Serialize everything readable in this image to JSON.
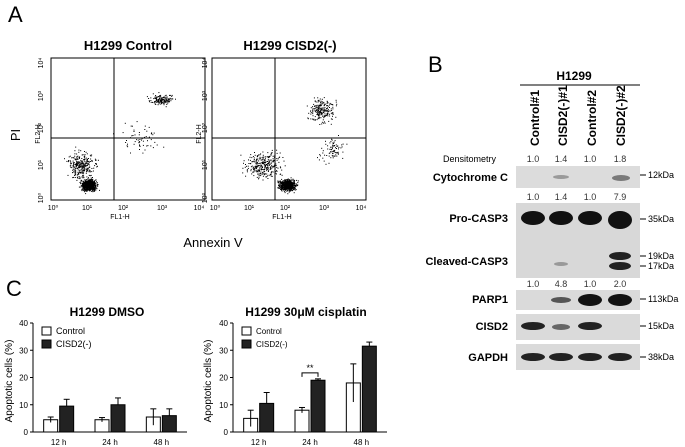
{
  "panel_a": {
    "letter": "A",
    "plots": [
      {
        "title": "H1299 Control",
        "y_axis_label": "FL2-H",
        "x_axis_label": "FL1-H",
        "ticks": [
          "10⁰",
          "10¹",
          "10²",
          "10³",
          "10⁴"
        ]
      },
      {
        "title": "H1299 CISD2(-)",
        "y_axis_label": "FL2-H",
        "x_axis_label": "FL1-H",
        "ticks": [
          "10⁰",
          "10¹",
          "10²",
          "10³",
          "10⁴"
        ]
      }
    ],
    "y_label": "PI",
    "x_label": "Annexin V"
  },
  "panel_b": {
    "letter": "B",
    "cell_line": "H1299",
    "lanes": [
      "Control#1",
      "CISD2(-)#1",
      "Control#2",
      "CISD2(-)#2"
    ],
    "densitometry_label": "Densitometry",
    "densitometry_rows": [
      {
        "values": [
          "1.0",
          "1.4",
          "1.0",
          "1.8"
        ]
      },
      {
        "values": [
          "1.0",
          "1.4",
          "1.0",
          "7.9"
        ]
      },
      {
        "values": [
          "1.0",
          "4.8",
          "1.0",
          "2.0"
        ]
      }
    ],
    "blots": [
      {
        "label": "Cytochrome C",
        "sizes": [
          "12kDa"
        ]
      },
      {
        "label": "Pro-CASP3",
        "sizes": [
          "35kDa"
        ]
      },
      {
        "label": "Cleaved-CASP3",
        "sizes": [
          "19kDa",
          "17kDa"
        ]
      },
      {
        "label": "PARP1",
        "sizes": [
          "113kDa"
        ]
      },
      {
        "label": "CISD2",
        "sizes": [
          "15kDa"
        ]
      },
      {
        "label": "GAPDH",
        "sizes": [
          "38kDa"
        ]
      }
    ]
  },
  "panel_c": {
    "letter": "C",
    "chart_data": [
      {
        "type": "bar",
        "title": "H1299 DMSO",
        "ylabel": "Apoptotic cells (%)",
        "categories": [
          "12 h",
          "24 h",
          "48 h"
        ],
        "ylim": [
          0,
          40
        ],
        "yticks": [
          "0",
          "10",
          "20",
          "30",
          "40"
        ],
        "series": [
          {
            "name": "Control",
            "values": [
              4.5,
              4.5,
              5.5
            ],
            "errors": [
              1.0,
              0.8,
              3.0
            ]
          },
          {
            "name": "CISD2(-)",
            "values": [
              9.5,
              10.0,
              6.0
            ],
            "errors": [
              2.5,
              2.5,
              2.5
            ]
          }
        ],
        "legend_position": "top-left"
      },
      {
        "type": "bar",
        "title": "H1299 30μM cisplatin",
        "ylabel": "Apoptotic cells (%)",
        "categories": [
          "12 h",
          "24 h",
          "48 h"
        ],
        "ylim": [
          0,
          40
        ],
        "yticks": [
          "0",
          "10",
          "20",
          "30",
          "40"
        ],
        "series": [
          {
            "name": "Control",
            "values": [
              5.0,
              8.0,
              18.0
            ],
            "errors": [
              3.0,
              1.0,
              7.0
            ]
          },
          {
            "name": "CISD2(-)",
            "values": [
              10.5,
              19.0,
              31.5
            ],
            "errors": [
              4.0,
              0.5,
              1.5
            ]
          }
        ],
        "annotation": "**",
        "legend_position": "top-left"
      }
    ]
  }
}
